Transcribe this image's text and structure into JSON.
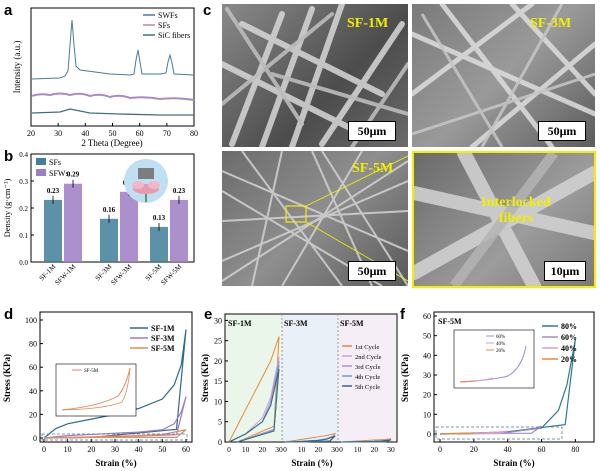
{
  "panels": {
    "a": {
      "label": "a",
      "ylabel": "Intensity (a.u.)",
      "xlabel": "2 Theta (Degree)",
      "xticks": [
        "20",
        "30",
        "40",
        "50",
        "60",
        "70",
        "80"
      ],
      "legend": [
        "SWFs",
        "SFs",
        "SiC fibers"
      ]
    },
    "b": {
      "label": "b",
      "ylabel": "Density (g·cm⁻¹)",
      "yticks": [
        "0.0",
        "0.1",
        "0.2",
        "0.3",
        "0.4"
      ],
      "legend": [
        "SFs",
        "SFWs"
      ],
      "categories": [
        "SF-1M",
        "SFW-1M",
        "SF-3M",
        "SFW-3M",
        "SF-5M",
        "SFW-5M"
      ]
    },
    "c": {
      "label": "c",
      "images": [
        {
          "tag": "SF-1M",
          "scale": "50μm"
        },
        {
          "tag": "SF-3M",
          "scale": "50μm"
        },
        {
          "tag": "SF-5M",
          "scale": "50μm"
        },
        {
          "tag": "Interlocked fibers",
          "scale": "10μm"
        }
      ]
    },
    "d": {
      "label": "d",
      "ylabel": "Stress (KPa)",
      "xlabel": "Strain (%)",
      "xticks": [
        "0",
        "10",
        "20",
        "30",
        "40",
        "50",
        "60"
      ],
      "yticks": [
        "0",
        "20",
        "40",
        "60",
        "80",
        "100"
      ],
      "legend": [
        "SF-1M",
        "SF-3M",
        "SF-5M"
      ],
      "inset_legend": "SF-5M",
      "inset_xticks": [
        "0",
        "10",
        "20",
        "30",
        "40",
        "50",
        "60"
      ],
      "inset_yticks": [
        "0",
        "1",
        "2",
        "3",
        "4"
      ]
    },
    "e": {
      "label": "e",
      "ylabel": "Stress (KPa)",
      "xlabel": "Strain (%)",
      "yticks": [
        "0",
        "5",
        "10",
        "15",
        "20",
        "25",
        "30"
      ],
      "section_labels": [
        "SF-1M",
        "SF-3M",
        "SF-5M"
      ],
      "section_xticks": [
        "0",
        "10",
        "20",
        "30"
      ],
      "legend": [
        "1st Cycle",
        "2nd Cycle",
        "3rd Cycle",
        "4th Cycle",
        "5th Cycle"
      ]
    },
    "f": {
      "label": "f",
      "ylabel": "Stress (KPa)",
      "xlabel": "Strain (%)",
      "tag": "SF-5M",
      "xticks": [
        "0",
        "20",
        "40",
        "60",
        "80"
      ],
      "yticks": [
        "0",
        "10",
        "20",
        "30",
        "40",
        "50",
        "60"
      ],
      "legend": [
        "80%",
        "60%",
        "40%",
        "20%"
      ],
      "inset_legend": [
        "60%",
        "40%",
        "20%"
      ],
      "inset_yticks": [
        "0",
        "1",
        "2",
        "3",
        "4",
        "5"
      ],
      "inset_xticks": [
        "0",
        "20",
        "40",
        "60"
      ]
    }
  },
  "chart_data": [
    {
      "type": "line",
      "panel": "a",
      "title": "",
      "xlabel": "2 Theta (Degree)",
      "ylabel": "Intensity (a.u.)",
      "xlim": [
        20,
        80
      ],
      "series": [
        {
          "name": "SWFs",
          "color": "#4a7a9e",
          "peaks_2theta": [
            35.6,
            41.4,
            60.0,
            71.8
          ]
        },
        {
          "name": "SFs",
          "color": "#a98ac9",
          "peaks_2theta": []
        },
        {
          "name": "SiC fibers",
          "color": "#3f6f86",
          "peaks_2theta": [
            35.6
          ]
        }
      ]
    },
    {
      "type": "bar",
      "panel": "b",
      "title": "",
      "ylabel": "Density (g·cm⁻¹)",
      "ylim": [
        0,
        0.4
      ],
      "categories": [
        "SF-1M",
        "SFW-1M",
        "SF-3M",
        "SFW-3M",
        "SF-5M",
        "SFW-5M"
      ],
      "series": [
        {
          "name": "SFs",
          "color": "#3f7f99",
          "values": [
            0.23,
            null,
            0.16,
            null,
            0.13,
            null
          ]
        },
        {
          "name": "SFWs",
          "color": "#9c7cc4",
          "values": [
            null,
            0.29,
            null,
            0.26,
            null,
            0.23
          ]
        }
      ],
      "data_labels": [
        "0.23",
        "0.29",
        "0.16",
        "0.26",
        "0.13",
        "0.23"
      ]
    },
    {
      "type": "line",
      "panel": "d",
      "title": "",
      "xlabel": "Strain (%)",
      "ylabel": "Stress (KPa)",
      "xlim": [
        0,
        62
      ],
      "ylim": [
        0,
        100
      ],
      "series": [
        {
          "name": "SF-1M",
          "color": "#2d6a8c",
          "x": [
            0,
            5,
            10,
            20,
            30,
            40,
            50,
            55,
            58,
            60
          ],
          "y": [
            0,
            8,
            12,
            16,
            20,
            25,
            33,
            45,
            62,
            92
          ]
        },
        {
          "name": "SF-3M",
          "color": "#9d7cc0",
          "x": [
            0,
            10,
            20,
            30,
            40,
            50,
            55,
            58,
            60
          ],
          "y": [
            0,
            2,
            3,
            4,
            5,
            7,
            12,
            22,
            35
          ]
        },
        {
          "name": "SF-5M",
          "color": "#e38b5a",
          "x": [
            0,
            10,
            20,
            30,
            40,
            50,
            55,
            60
          ],
          "y": [
            0,
            0.5,
            1,
            1.5,
            2,
            3,
            5,
            7
          ]
        }
      ]
    },
    {
      "type": "line",
      "panel": "e",
      "title": "",
      "xlabel": "Strain (%)",
      "ylabel": "Stress (KPa)",
      "ylim": [
        0,
        30
      ],
      "series": [
        {
          "name": "1st Cycle",
          "color": "#e38b3a",
          "x": [
            0,
            5,
            10,
            15,
            20,
            25,
            30
          ],
          "y": [
            0,
            4,
            8,
            12,
            16,
            20,
            26
          ]
        },
        {
          "name": "2nd Cycle",
          "color": "#c9a0d8",
          "x": [
            0,
            10,
            20,
            25,
            30
          ],
          "y": [
            0,
            2,
            6,
            11,
            21
          ]
        },
        {
          "name": "3rd Cycle",
          "color": "#b38fd0",
          "x": [
            0,
            10,
            20,
            25,
            30
          ],
          "y": [
            0,
            2,
            5,
            10,
            20
          ]
        },
        {
          "name": "4th Cycle",
          "color": "#6a9ec0",
          "x": [
            0,
            10,
            20,
            25,
            30
          ],
          "y": [
            0,
            2,
            5,
            9,
            19
          ]
        },
        {
          "name": "5th Cycle",
          "color": "#2d6a8c",
          "x": [
            0,
            10,
            20,
            25,
            30
          ],
          "y": [
            0,
            2,
            5,
            9,
            18
          ]
        }
      ]
    },
    {
      "type": "line",
      "panel": "f",
      "title": "",
      "xlabel": "Strain (%)",
      "ylabel": "Stress (KPa)",
      "xlim": [
        0,
        85
      ],
      "ylim": [
        0,
        60
      ],
      "series": [
        {
          "name": "80%",
          "color": "#2d7a8c",
          "x": [
            0,
            20,
            40,
            60,
            70,
            75,
            80
          ],
          "y": [
            0,
            0.5,
            1,
            3,
            12,
            25,
            48
          ]
        },
        {
          "name": "60%",
          "color": "#a08ad0",
          "x": [
            0,
            20,
            40,
            55,
            60
          ],
          "y": [
            0,
            0.3,
            0.8,
            2.5,
            4
          ]
        },
        {
          "name": "40%",
          "color": "#d4a0c8",
          "x": [
            0,
            20,
            35,
            40
          ],
          "y": [
            0,
            0.3,
            1.0,
            1.5
          ]
        },
        {
          "name": "20%",
          "color": "#e38b3a",
          "x": [
            0,
            10,
            20
          ],
          "y": [
            0,
            0.2,
            0.5
          ]
        }
      ]
    }
  ]
}
